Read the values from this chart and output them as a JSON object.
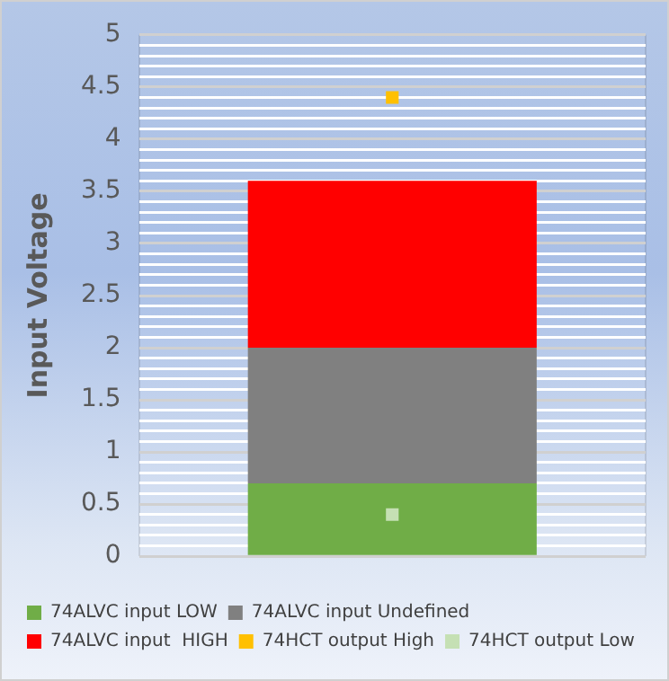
{
  "chart_data": {
    "type": "bar",
    "stacked": true,
    "ylabel": "Input Voltage",
    "categories": [
      null
    ],
    "series": [
      {
        "name": "74ALVC input LOW",
        "color": "#70ad47",
        "values": [
          0.7
        ]
      },
      {
        "name": "74ALVC input Undefined",
        "color": "#808080",
        "values": [
          1.3
        ]
      },
      {
        "name": "74ALVC input  HIGH",
        "color": "#ff0000",
        "values": [
          1.6
        ]
      },
      {
        "name": "74HCT output High",
        "type": "scatter",
        "marker": "square",
        "color": "#ffc000",
        "values": [
          4.4
        ]
      },
      {
        "name": "74HCT output Low",
        "type": "scatter",
        "marker": "square",
        "color": "#c5e0b4",
        "values": [
          0.4
        ]
      }
    ],
    "ylim": [
      0,
      5
    ],
    "yticks": [
      0,
      {
        "value": 0.1,
        "label": null
      },
      {
        "value": 0.2,
        "label": null
      },
      {
        "value": 0.3,
        "label": null
      },
      {
        "value": 0.4,
        "label": null
      },
      0.5,
      {
        "value": 0.6,
        "label": null
      },
      {
        "value": 0.7,
        "label": null
      },
      {
        "value": 0.8,
        "label": null
      },
      {
        "value": 0.9,
        "label": null
      },
      1,
      {
        "value": 1.1,
        "label": null
      },
      {
        "value": 1.2,
        "label": null
      },
      {
        "value": 1.3,
        "label": null
      },
      {
        "value": 1.4,
        "label": null
      },
      1.5,
      {
        "value": 1.6,
        "label": null
      },
      {
        "value": 1.7,
        "label": null
      },
      {
        "value": 1.8,
        "label": null
      },
      {
        "value": 1.9,
        "label": null
      },
      2,
      {
        "value": 2.1,
        "label": null
      },
      {
        "value": 2.2,
        "label": null
      },
      {
        "value": 2.3,
        "label": null
      },
      {
        "value": 2.4,
        "label": null
      },
      2.5,
      {
        "value": 2.6,
        "label": null
      },
      {
        "value": 2.7,
        "label": null
      },
      {
        "value": 2.8,
        "label": null
      },
      {
        "value": 2.9,
        "label": null
      },
      3,
      {
        "value": 3.1,
        "label": null
      },
      {
        "value": 3.2,
        "label": null
      },
      {
        "value": 3.3,
        "label": null
      },
      {
        "value": 3.4,
        "label": null
      },
      3.5,
      {
        "value": 3.6,
        "label": null
      },
      {
        "value": 3.7,
        "label": null
      },
      {
        "value": 3.8,
        "label": null
      },
      {
        "value": 3.9,
        "label": null
      },
      4,
      {
        "value": 4.1,
        "label": null
      },
      {
        "value": 4.2,
        "label": null
      },
      {
        "value": 4.3,
        "label": null
      },
      {
        "value": 4.4,
        "label": null
      },
      4.5,
      {
        "value": 4.6,
        "label": null
      },
      {
        "value": 4.7,
        "label": null
      },
      {
        "value": 4.8,
        "label": null
      },
      {
        "value": 4.9,
        "label": null
      },
      5
    ],
    "grid": true,
    "legend": "bottom"
  }
}
